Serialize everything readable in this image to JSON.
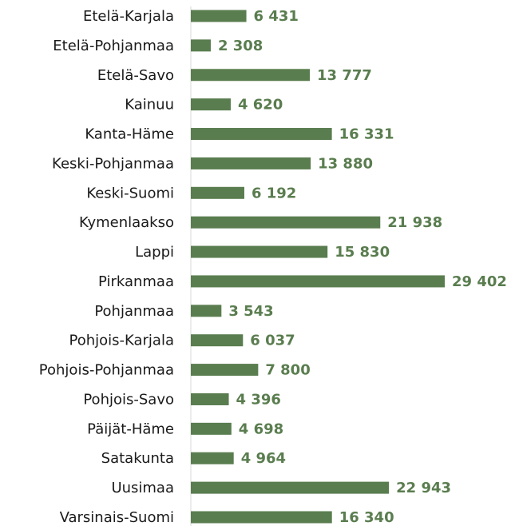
{
  "chart_data": {
    "type": "bar",
    "orientation": "horizontal",
    "color": "#5a7d4f",
    "categories": [
      "Etelä-Karjala",
      "Etelä-Pohjanmaa",
      "Etelä-Savo",
      "Kainuu",
      "Kanta-Häme",
      "Keski-Pohjanmaa",
      "Keski-Suomi",
      "Kymenlaakso",
      "Lappi",
      "Pirkanmaa",
      "Pohjanmaa",
      "Pohjois-Karjala",
      "Pohjois-Pohjanmaa",
      "Pohjois-Savo",
      "Päijät-Häme",
      "Satakunta",
      "Uusimaa",
      "Varsinais-Suomi"
    ],
    "values": [
      6431,
      2308,
      13777,
      4620,
      16331,
      13880,
      6192,
      21938,
      15830,
      29402,
      3543,
      6037,
      7800,
      4396,
      4698,
      4964,
      22943,
      16340
    ],
    "value_labels": [
      "6 431",
      "2 308",
      "13 777",
      "4 620",
      "16 331",
      "13 880",
      "6 192",
      "21 938",
      "15 830",
      "29 402",
      "3 543",
      "6 037",
      "7 800",
      "4 396",
      "4 698",
      "4 964",
      "22 943",
      "16 340"
    ]
  }
}
